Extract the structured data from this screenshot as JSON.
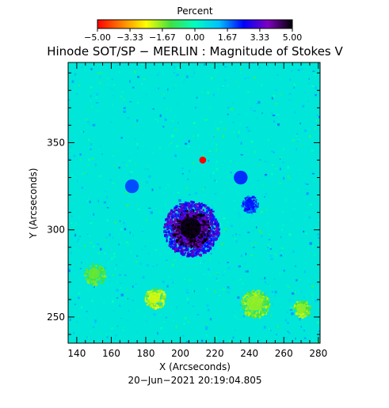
{
  "chart_data": {
    "type": "heatmap",
    "title": "Hinode SOT/SP − MERLIN : Magnitude of Stokes V",
    "xlabel": "X (Arcseconds)",
    "ylabel": "Y (Arcseconds)",
    "timestamp": "20−Jun−2021 20:19:04.805",
    "xlim": [
      135,
      281
    ],
    "ylim": [
      235,
      396
    ],
    "x_ticks": [
      140,
      160,
      180,
      200,
      220,
      240,
      260,
      280
    ],
    "y_ticks": [
      250,
      300,
      350
    ],
    "colorbar": {
      "label": "Percent",
      "range": [
        -5.0,
        5.0
      ],
      "tick_labels": [
        "−5.00",
        "−3.33",
        "−1.67",
        "0.00",
        "1.67",
        "3.33",
        "5.00"
      ],
      "tick_values": [
        -5.0,
        -3.33,
        -1.67,
        0.0,
        1.67,
        3.33,
        5.0
      ],
      "colors": [
        "#ff0000",
        "#ff8000",
        "#ffff00",
        "#40e040",
        "#00ffc0",
        "#00c0ff",
        "#0000ff",
        "#8000c0",
        "#000000"
      ]
    },
    "background_value": 0.5,
    "features": [
      {
        "x": 206,
        "y": 301,
        "radius": 11,
        "value": 5.0
      },
      {
        "x": 206,
        "y": 301,
        "radius": 16,
        "value": 3.3
      },
      {
        "x": 213,
        "y": 340,
        "radius": 2,
        "value": -5.0
      },
      {
        "x": 185,
        "y": 261,
        "radius": 6,
        "value": -2.2
      },
      {
        "x": 243,
        "y": 258,
        "radius": 8,
        "value": -1.8
      },
      {
        "x": 150,
        "y": 275,
        "radius": 6,
        "value": -1.5
      },
      {
        "x": 270,
        "y": 255,
        "radius": 5,
        "value": -1.8
      },
      {
        "x": 240,
        "y": 315,
        "radius": 5,
        "value": 2.4
      },
      {
        "x": 172,
        "y": 325,
        "radius": 4,
        "value": 2.0
      },
      {
        "x": 235,
        "y": 330,
        "radius": 4,
        "value": 2.2
      }
    ]
  }
}
